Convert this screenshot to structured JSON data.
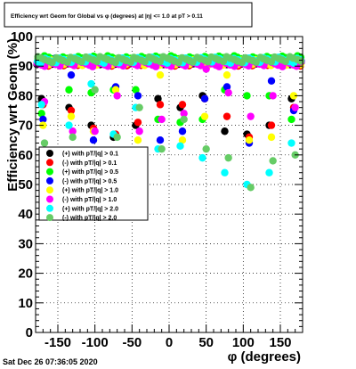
{
  "chart_data": {
    "type": "scatter",
    "title": "Efficiency wrt Geom for Global vs φ (degrees) at |η| <= 1.0 at pT > 0.11",
    "xlabel": "φ (degrees)",
    "ylabel": "Efficiency wrt Geom (%)",
    "xlim": [
      -180,
      180
    ],
    "ylim": [
      0,
      100
    ],
    "xticks": [
      -150,
      -100,
      -50,
      0,
      50,
      100,
      150
    ],
    "xtick_labels": [
      "-150",
      "-100",
      "-50",
      "0",
      "50",
      "100",
      "150"
    ],
    "yticks": [
      0,
      10,
      20,
      30,
      40,
      50,
      60,
      70,
      80,
      90,
      100
    ],
    "ytick_labels": [
      "0",
      "10",
      "20",
      "30",
      "40",
      "50",
      "60",
      "70",
      "80",
      "90",
      "100"
    ],
    "grid": true,
    "legend_position": "middle-left",
    "timestamp": "Sat Dec 26 07:36:05 2020",
    "series": [
      {
        "name": "(+) with pT/|q| > 0.1",
        "color": "#000000",
        "plateau": 91.5,
        "dips": [
          [
            -172,
            79
          ],
          [
            -135,
            76
          ],
          [
            -105,
            70
          ],
          [
            -75,
            66
          ],
          [
            -45,
            70
          ],
          [
            -15,
            79
          ],
          [
            15,
            76
          ],
          [
            45,
            80
          ],
          [
            75,
            68
          ],
          [
            105,
            67
          ],
          [
            135,
            70
          ],
          [
            165,
            79
          ]
        ]
      },
      {
        "name": "(-) with pT/|q| > 0.1",
        "color": "#ff0000",
        "plateau": 91.0,
        "dips": [
          [
            -170,
            77
          ],
          [
            -132,
            75
          ],
          [
            -102,
            69
          ],
          [
            -72,
            67
          ],
          [
            -42,
            71
          ],
          [
            -12,
            77
          ],
          [
            18,
            77
          ],
          [
            48,
            79
          ],
          [
            78,
            73
          ],
          [
            108,
            66
          ],
          [
            138,
            70
          ],
          [
            168,
            76
          ]
        ]
      },
      {
        "name": "(+) with pT/|q| > 0.5",
        "color": "#00ff00",
        "plateau": 92.5,
        "dips": [
          [
            -172,
            74
          ],
          [
            -135,
            82
          ],
          [
            -105,
            81
          ],
          [
            -75,
            82
          ],
          [
            -45,
            82
          ],
          [
            -15,
            72
          ],
          [
            15,
            71
          ],
          [
            45,
            72
          ],
          [
            75,
            82
          ],
          [
            105,
            80
          ],
          [
            135,
            80
          ],
          [
            165,
            72
          ]
        ]
      },
      {
        "name": "(-) with pT/|q| > 0.5",
        "color": "#0000ff",
        "plateau": 91.8,
        "dips": [
          [
            -170,
            72
          ],
          [
            -132,
            87
          ],
          [
            -102,
            65
          ],
          [
            -72,
            83
          ],
          [
            -42,
            80
          ],
          [
            -12,
            65
          ],
          [
            18,
            68
          ],
          [
            48,
            79
          ],
          [
            78,
            83
          ],
          [
            108,
            64
          ],
          [
            138,
            85
          ],
          [
            168,
            75
          ]
        ]
      },
      {
        "name": "(+) with pT/|q| > 1.0",
        "color": "#ffff00",
        "plateau": 91.2,
        "dips": [
          [
            -170,
            70
          ],
          [
            -132,
            73
          ],
          [
            -102,
            68
          ],
          [
            -72,
            82
          ],
          [
            -42,
            65
          ],
          [
            -12,
            87
          ],
          [
            18,
            65
          ],
          [
            48,
            73
          ],
          [
            78,
            87
          ],
          [
            108,
            65
          ],
          [
            138,
            66
          ],
          [
            168,
            80
          ]
        ]
      },
      {
        "name": "(-) with pT/|q| > 1.0",
        "color": "#ff00ff",
        "plateau": 90.8,
        "dips": [
          [
            -168,
            78
          ],
          [
            -130,
            68
          ],
          [
            -100,
            68
          ],
          [
            -70,
            80
          ],
          [
            -40,
            68
          ],
          [
            -10,
            72
          ],
          [
            20,
            74
          ],
          [
            50,
            89
          ],
          [
            80,
            81
          ],
          [
            110,
            73
          ],
          [
            140,
            80
          ],
          [
            170,
            76
          ]
        ]
      },
      {
        "name": "(+) with pT/|q| > 2.0",
        "color": "#00ffff",
        "plateau": 92.0,
        "dips": [
          [
            -172,
            77
          ],
          [
            -135,
            70
          ],
          [
            -105,
            84
          ],
          [
            -75,
            67
          ],
          [
            -45,
            76
          ],
          [
            -15,
            62
          ],
          [
            15,
            63
          ],
          [
            45,
            59
          ],
          [
            75,
            54
          ],
          [
            105,
            50
          ],
          [
            135,
            54
          ],
          [
            165,
            64
          ]
        ]
      },
      {
        "name": "(-) with pT/|q| > 2.0",
        "color": "#66cc66",
        "plateau": 92.2,
        "dips": [
          [
            -168,
            64
          ],
          [
            -130,
            66
          ],
          [
            -100,
            82
          ],
          [
            -70,
            66
          ],
          [
            -40,
            76
          ],
          [
            -10,
            62
          ],
          [
            20,
            72
          ],
          [
            50,
            62
          ],
          [
            80,
            59
          ],
          [
            110,
            49
          ],
          [
            140,
            58
          ],
          [
            170,
            60
          ]
        ]
      }
    ]
  }
}
